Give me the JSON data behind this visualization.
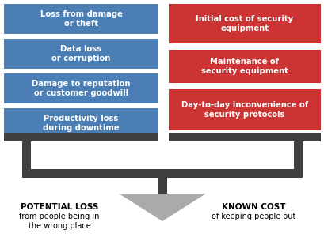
{
  "left_boxes": [
    "Loss from damage\nor theft",
    "Data loss\nor corruption",
    "Damage to reputation\nor customer goodwill",
    "Productivity loss\nduring downtime"
  ],
  "right_boxes": [
    "Initial cost of security\nequipment",
    "Maintenance of\nsecurity equipment",
    "Day-to-day inconvenience of\nsecurity protocols"
  ],
  "left_color": "#4a7eb5",
  "right_color": "#cc3333",
  "text_color": "#ffffff",
  "scale_color": "#404040",
  "triangle_color": "#aaaaaa",
  "bg_color": "#ffffff",
  "left_label_bold": "POTENTIAL LOSS",
  "left_label_normal": "from people being in\nthe wrong place",
  "right_label_bold": "KNOWN COST",
  "right_label_normal": "of keeping people out",
  "label_color": "#000000",
  "figsize": [
    4.1,
    3.0
  ],
  "dpi": 100
}
